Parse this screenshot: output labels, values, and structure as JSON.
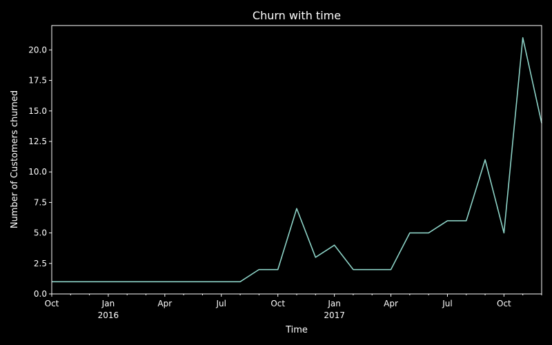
{
  "chart_data": {
    "type": "line",
    "title": "Churn with time",
    "xlabel": "Time",
    "ylabel": "Number of Customers churned",
    "x": [
      "2015-10",
      "2015-11",
      "2015-12",
      "2016-01",
      "2016-02",
      "2016-03",
      "2016-04",
      "2016-05",
      "2016-06",
      "2016-07",
      "2016-08",
      "2016-09",
      "2016-10",
      "2016-11",
      "2016-12",
      "2017-01",
      "2017-02",
      "2017-03",
      "2017-04",
      "2017-05",
      "2017-06",
      "2017-07",
      "2017-08",
      "2017-09",
      "2017-10",
      "2017-11",
      "2017-12"
    ],
    "series": [
      {
        "values": [
          1,
          1,
          1,
          1,
          1,
          1,
          1,
          1,
          1,
          1,
          1,
          2,
          2,
          7,
          3,
          4,
          2,
          2,
          2,
          5,
          5,
          6,
          6,
          11,
          5,
          21,
          14
        ],
        "color": "#8dd3c7"
      }
    ],
    "xlim": [
      "2015-10",
      "2017-12"
    ],
    "ylim": [
      0,
      22
    ],
    "yticks": [
      0.0,
      2.5,
      5.0,
      7.5,
      10.0,
      12.5,
      15.0,
      17.5,
      20.0
    ],
    "ytick_labels": [
      "0.0",
      "2.5",
      "5.0",
      "7.5",
      "10.0",
      "12.5",
      "15.0",
      "17.5",
      "20.0"
    ],
    "xticks_major": [
      {
        "at": "2015-10",
        "label": "Oct",
        "year": ""
      },
      {
        "at": "2016-01",
        "label": "Jan",
        "year": "2016"
      },
      {
        "at": "2016-04",
        "label": "Apr",
        "year": ""
      },
      {
        "at": "2016-07",
        "label": "Jul",
        "year": ""
      },
      {
        "at": "2016-10",
        "label": "Oct",
        "year": ""
      },
      {
        "at": "2017-01",
        "label": "Jan",
        "year": "2017"
      },
      {
        "at": "2017-04",
        "label": "Apr",
        "year": ""
      },
      {
        "at": "2017-07",
        "label": "Jul",
        "year": ""
      },
      {
        "at": "2017-10",
        "label": "Oct",
        "year": ""
      }
    ],
    "grid": false,
    "legend": "none",
    "background_color": "#000000",
    "axis_color": "#ffffff"
  }
}
